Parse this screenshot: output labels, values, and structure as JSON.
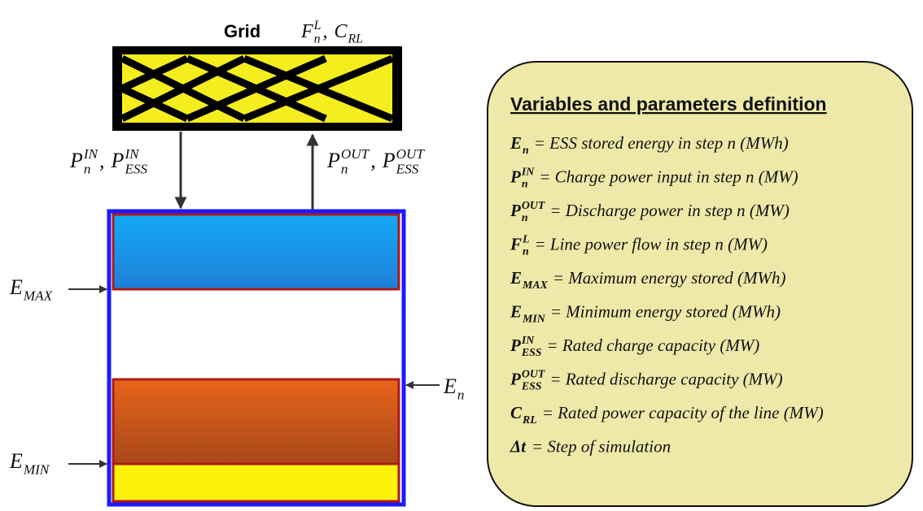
{
  "diagram": {
    "grid_title": "Grid",
    "grid_labels": {
      "separator": ",",
      "terms": [
        {
          "base": "F",
          "sub": "n",
          "sup": "L"
        },
        {
          "base": "C",
          "sub": "RL"
        }
      ]
    },
    "input_labels": {
      "separator": ",",
      "terms": [
        {
          "base": "P",
          "sub": "n",
          "sup": "IN"
        },
        {
          "base": "P",
          "sub": "ESS",
          "sup": "IN"
        }
      ]
    },
    "output_labels": {
      "separator": ",",
      "terms": [
        {
          "base": "P",
          "sub": "n",
          "sup": "OUT"
        },
        {
          "base": "P",
          "sub": "ESS",
          "sup": "OUT"
        }
      ]
    },
    "emax_label": {
      "base": "E",
      "sub": "MAX"
    },
    "emin_label": {
      "base": "E",
      "sub": "MIN"
    },
    "en_label": {
      "base": "E",
      "sub": "n"
    },
    "panel": {
      "title": "Variables and parameters definition",
      "definitions": [
        {
          "symbol": {
            "base": "E",
            "sub": "n"
          },
          "text": "= ESS stored energy in step n (MWh)"
        },
        {
          "symbol": {
            "base": "P",
            "sub": "n",
            "sup": "IN"
          },
          "text": "= Charge power input in step n (MW)"
        },
        {
          "symbol": {
            "base": "P",
            "sub": "n",
            "sup": "OUT"
          },
          "text": "= Discharge power in step n (MW)"
        },
        {
          "symbol": {
            "base": "F",
            "sub": "n",
            "sup": "L"
          },
          "text": "= Line power flow in step n (MW)"
        },
        {
          "symbol": {
            "base": "E",
            "sub": "MAX"
          },
          "text": "= Maximum energy stored (MWh)"
        },
        {
          "symbol": {
            "base": "E",
            "sub": "MIN"
          },
          "text": "= Minimum energy stored (MWh)"
        },
        {
          "symbol": {
            "base": "P",
            "sub": "ESS",
            "sup": "IN"
          },
          "text": "= Rated charge capacity (MW)"
        },
        {
          "symbol": {
            "base": "P",
            "sub": "ESS",
            "sup": "OUT"
          },
          "text": "= Rated discharge capacity (MW)"
        },
        {
          "symbol": {
            "base": "C",
            "sub": "RL"
          },
          "text": "= Rated power capacity of the line (MW)"
        },
        {
          "symbol": {
            "base": "Δt"
          },
          "text": "= Step of simulation"
        }
      ]
    }
  }
}
